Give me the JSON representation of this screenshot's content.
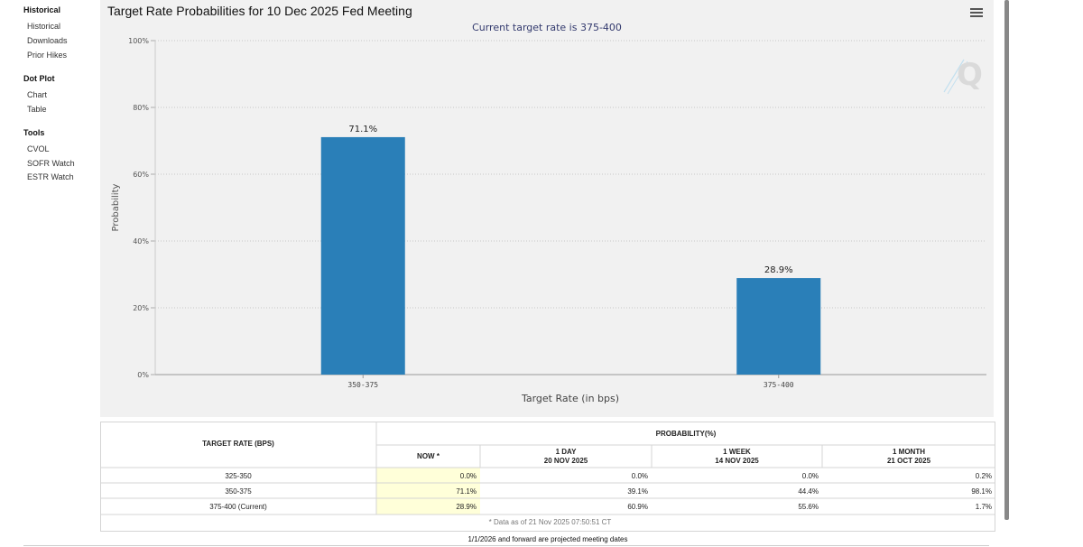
{
  "sidebar": {
    "groups": [
      {
        "title": "Historical",
        "items": [
          "Historical",
          "Downloads",
          "Prior Hikes"
        ]
      },
      {
        "title": "Dot Plot",
        "items": [
          "Chart",
          "Table"
        ]
      },
      {
        "title": "Tools",
        "items": [
          "CVOL",
          "SOFR Watch",
          "ESTR Watch"
        ]
      }
    ]
  },
  "colors": {
    "bar": "#2a7fb8",
    "highlight": "#ffffd9",
    "panel": "#f1f1f1"
  },
  "chart_data": {
    "type": "bar",
    "title": "Target Rate Probabilities for 10 Dec 2025 Fed Meeting",
    "subtitle": "Current target rate is 375-400",
    "categories": [
      "350-375",
      "375-400"
    ],
    "values": [
      71.1,
      28.9
    ],
    "data_labels": [
      "71.1%",
      "28.9%"
    ],
    "xlabel": "Target Rate (in bps)",
    "ylabel": "Probability",
    "ylim": [
      0,
      100
    ],
    "yticks": [
      0,
      20,
      40,
      60,
      80,
      100
    ],
    "ytick_labels": [
      "0%",
      "20%",
      "40%",
      "60%",
      "80%",
      "100%"
    ],
    "grid": true,
    "legend": "none"
  },
  "table": {
    "rate_header": "TARGET RATE (BPS)",
    "prob_header": "PROBABILITY(%)",
    "columns": [
      {
        "label": "NOW *",
        "date": ""
      },
      {
        "label": "1 DAY",
        "date": "20 NOV 2025"
      },
      {
        "label": "1 WEEK",
        "date": "14 NOV 2025"
      },
      {
        "label": "1 MONTH",
        "date": "21 OCT 2025"
      }
    ],
    "rows": [
      {
        "rate": "325-350",
        "values": [
          "0.0%",
          "0.0%",
          "0.0%",
          "0.2%"
        ]
      },
      {
        "rate": "350-375",
        "values": [
          "71.1%",
          "39.1%",
          "44.4%",
          "98.1%"
        ]
      },
      {
        "rate": "375-400 (Current)",
        "values": [
          "28.9%",
          "60.9%",
          "55.6%",
          "1.7%"
        ]
      }
    ],
    "data_note": "* Data as of 21 Nov 2025 07:50:51 CT"
  },
  "footnote": "1/1/2026 and forward are projected meeting dates"
}
